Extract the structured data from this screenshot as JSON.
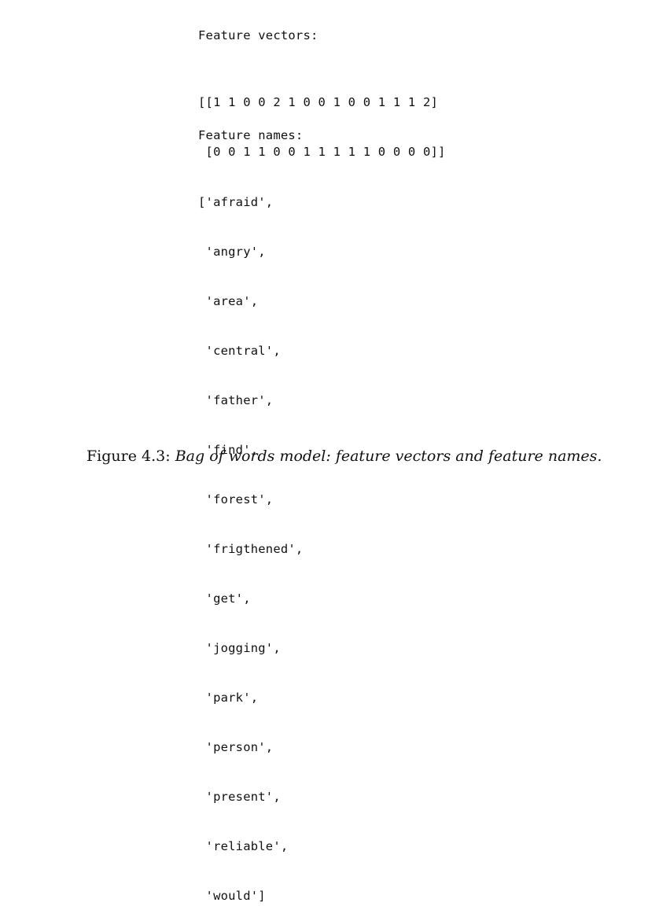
{
  "vectors_heading": "Feature vectors:",
  "vectors": [
    "[[1 1 0 0 2 1 0 0 1 0 0 1 1 1 2]",
    " [0 0 1 1 0 0 1 1 1 1 1 0 0 0 0]]"
  ],
  "names_heading": "Feature names:",
  "names": [
    "['afraid',",
    " 'angry',",
    " 'area',",
    " 'central',",
    " 'father',",
    " 'find',",
    " 'forest',",
    " 'frigthened',",
    " 'get',",
    " 'jogging',",
    " 'park',",
    " 'person',",
    " 'present',",
    " 'reliable',",
    " 'would']"
  ],
  "caption": {
    "label": "Figure 4.3:",
    "text": "Bag of words model: feature vectors and feature names."
  }
}
